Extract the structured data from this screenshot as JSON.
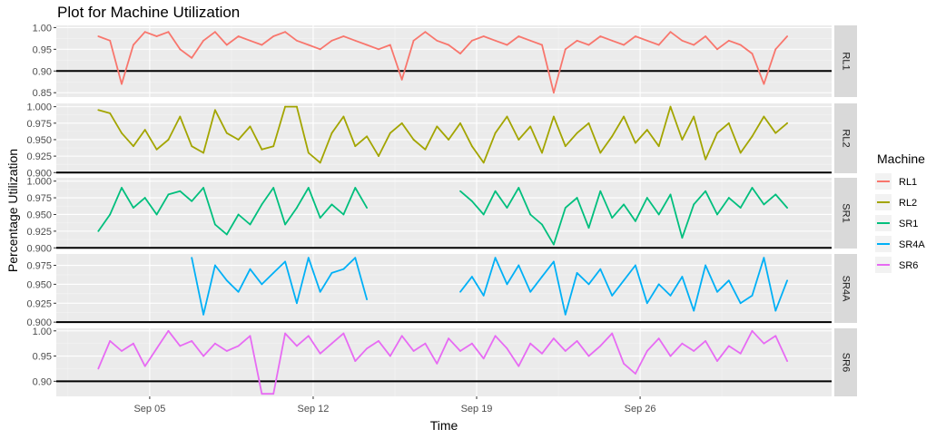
{
  "chart_data": {
    "type": "line",
    "title": "Plot for Machine Utilization",
    "xlabel": "Time",
    "ylabel": "Percentage Utilization",
    "legend": {
      "title": "Machine",
      "position": "right"
    },
    "facet_direction": "rows",
    "grid": true,
    "x_ticks": [
      "Sep 05",
      "Sep 12",
      "Sep 19",
      "Sep 26"
    ],
    "x_tick_days": [
      5,
      12,
      19,
      26
    ],
    "xlim_days": [
      1.0,
      34.2
    ],
    "threshold": {
      "y": 0.9,
      "color": "#000000"
    },
    "panels": [
      {
        "name": "RL1",
        "color": "#F8766D",
        "ylim": [
          0.84,
          1.005
        ],
        "yticks": [
          0.85,
          0.9,
          0.95,
          1.0
        ],
        "ytick_labels": [
          "0.85",
          "0.90",
          "0.95",
          "1.00"
        ],
        "x": [
          2.8,
          3.3,
          3.8,
          4.3,
          4.8,
          5.3,
          5.8,
          6.3,
          6.8,
          7.3,
          7.8,
          8.3,
          8.8,
          9.3,
          9.8,
          10.3,
          10.8,
          11.3,
          11.8,
          12.3,
          12.8,
          13.3,
          13.8,
          14.3,
          14.8,
          15.3,
          15.8,
          16.3,
          16.8,
          17.3,
          17.8,
          18.3,
          18.8,
          19.3,
          19.8,
          20.3,
          20.8,
          21.3,
          21.8,
          22.3,
          22.8,
          23.3,
          23.8,
          24.3,
          24.8,
          25.3,
          25.8,
          26.3,
          26.8,
          27.3,
          27.8,
          28.3,
          28.8,
          29.3,
          29.8,
          30.3,
          30.8,
          31.3,
          31.8,
          32.3
        ],
        "values": [
          0.98,
          0.97,
          0.87,
          0.96,
          0.99,
          0.98,
          0.99,
          0.95,
          0.93,
          0.97,
          0.99,
          0.96,
          0.98,
          0.97,
          0.96,
          0.98,
          0.99,
          0.97,
          0.96,
          0.95,
          0.97,
          0.98,
          0.97,
          0.96,
          0.95,
          0.96,
          0.88,
          0.97,
          0.99,
          0.97,
          0.96,
          0.94,
          0.97,
          0.98,
          0.97,
          0.96,
          0.98,
          0.97,
          0.96,
          0.85,
          0.95,
          0.97,
          0.96,
          0.98,
          0.97,
          0.96,
          0.98,
          0.97,
          0.96,
          0.99,
          0.97,
          0.96,
          0.98,
          0.95,
          0.97,
          0.96,
          0.94,
          0.87,
          0.95,
          0.98
        ]
      },
      {
        "name": "RL2",
        "color": "#A3A500",
        "ylim": [
          0.899,
          1.005
        ],
        "yticks": [
          0.9,
          0.925,
          0.95,
          0.975,
          1.0
        ],
        "ytick_labels": [
          "0.900",
          "0.925",
          "0.950",
          "0.975",
          "1.000"
        ],
        "x": [
          2.8,
          3.3,
          3.8,
          4.3,
          4.8,
          5.3,
          5.8,
          6.3,
          6.8,
          7.3,
          7.8,
          8.3,
          8.8,
          9.3,
          9.8,
          10.3,
          10.8,
          11.3,
          11.8,
          12.3,
          12.8,
          13.3,
          13.8,
          14.3,
          14.8,
          15.3,
          15.8,
          16.3,
          16.8,
          17.3,
          17.8,
          18.3,
          18.8,
          19.3,
          19.8,
          20.3,
          20.8,
          21.3,
          21.8,
          22.3,
          22.8,
          23.3,
          23.8,
          24.3,
          24.8,
          25.3,
          25.8,
          26.3,
          26.8,
          27.3,
          27.8,
          28.3,
          28.8,
          29.3,
          29.8,
          30.3,
          30.8,
          31.3,
          31.8,
          32.3
        ],
        "values": [
          0.995,
          0.99,
          0.96,
          0.94,
          0.965,
          0.935,
          0.95,
          0.985,
          0.94,
          0.93,
          0.995,
          0.96,
          0.95,
          0.97,
          0.935,
          0.94,
          1.0,
          1.0,
          0.93,
          0.915,
          0.96,
          0.985,
          0.94,
          0.955,
          0.925,
          0.96,
          0.975,
          0.95,
          0.935,
          0.97,
          0.95,
          0.975,
          0.94,
          0.915,
          0.96,
          0.985,
          0.95,
          0.97,
          0.93,
          0.985,
          0.94,
          0.96,
          0.975,
          0.93,
          0.955,
          0.985,
          0.945,
          0.965,
          0.94,
          1.0,
          0.95,
          0.985,
          0.92,
          0.96,
          0.975,
          0.93,
          0.955,
          0.985,
          0.96,
          0.975
        ]
      },
      {
        "name": "SR1",
        "color": "#00BF7D",
        "ylim": [
          0.899,
          1.005
        ],
        "yticks": [
          0.9,
          0.925,
          0.95,
          0.975,
          1.0
        ],
        "ytick_labels": [
          "0.900",
          "0.925",
          "0.950",
          "0.975",
          "1.000"
        ],
        "x": [
          2.8,
          3.3,
          3.8,
          4.3,
          4.8,
          5.3,
          5.8,
          6.3,
          6.8,
          7.3,
          7.8,
          8.3,
          8.8,
          9.3,
          9.8,
          10.3,
          10.8,
          11.3,
          11.8,
          12.3,
          12.8,
          13.3,
          13.8,
          14.3,
          14.8,
          15.3,
          15.8,
          16.3,
          16.8,
          17.3,
          17.8,
          18.3,
          18.8,
          19.3,
          19.8,
          20.3,
          20.8,
          21.3,
          21.8,
          22.3,
          22.8,
          23.3,
          23.8,
          24.3,
          24.8,
          25.3,
          25.8,
          26.3,
          26.8,
          27.3,
          27.8,
          28.3,
          28.8,
          29.3,
          29.8,
          30.3,
          30.8,
          31.3,
          31.8,
          32.3
        ],
        "values": [
          0.925,
          0.95,
          0.99,
          0.96,
          0.975,
          0.95,
          0.98,
          0.985,
          0.97,
          0.99,
          0.935,
          0.92,
          0.95,
          0.935,
          0.965,
          0.99,
          0.935,
          0.96,
          0.99,
          0.945,
          0.965,
          0.95,
          0.99,
          0.96,
          null,
          null,
          null,
          null,
          null,
          null,
          null,
          0.985,
          0.97,
          0.95,
          0.985,
          0.96,
          0.99,
          0.95,
          0.935,
          0.905,
          0.96,
          0.975,
          0.93,
          0.985,
          0.945,
          0.965,
          0.94,
          0.975,
          0.95,
          0.98,
          0.915,
          0.965,
          0.985,
          0.95,
          0.975,
          0.96,
          0.99,
          0.965,
          0.98,
          0.96
        ]
      },
      {
        "name": "SR4A",
        "color": "#00B0F6",
        "ylim": [
          0.899,
          0.99
        ],
        "yticks": [
          0.9,
          0.925,
          0.95,
          0.975
        ],
        "ytick_labels": [
          "0.900",
          "0.925",
          "0.950",
          "0.975"
        ],
        "x": [
          2.8,
          3.3,
          3.8,
          4.3,
          4.8,
          5.3,
          5.8,
          6.3,
          6.8,
          7.3,
          7.8,
          8.3,
          8.8,
          9.3,
          9.8,
          10.3,
          10.8,
          11.3,
          11.8,
          12.3,
          12.8,
          13.3,
          13.8,
          14.3,
          14.8,
          15.3,
          15.8,
          16.3,
          16.8,
          17.3,
          17.8,
          18.3,
          18.8,
          19.3,
          19.8,
          20.3,
          20.8,
          21.3,
          21.8,
          22.3,
          22.8,
          23.3,
          23.8,
          24.3,
          24.8,
          25.3,
          25.8,
          26.3,
          26.8,
          27.3,
          27.8,
          28.3,
          28.8,
          29.3,
          29.8,
          30.3,
          30.8,
          31.3,
          31.8,
          32.3
        ],
        "values": [
          null,
          null,
          null,
          null,
          null,
          null,
          null,
          null,
          0.985,
          0.91,
          0.975,
          0.955,
          0.94,
          0.97,
          0.95,
          0.965,
          0.98,
          0.925,
          0.985,
          0.94,
          0.965,
          0.97,
          0.985,
          0.93,
          null,
          null,
          null,
          null,
          null,
          null,
          null,
          0.94,
          0.96,
          0.935,
          0.985,
          0.95,
          0.975,
          0.94,
          0.96,
          0.98,
          0.91,
          0.965,
          0.95,
          0.97,
          0.935,
          0.955,
          0.975,
          0.925,
          0.95,
          0.935,
          0.96,
          0.915,
          0.975,
          0.94,
          0.955,
          0.925,
          0.935,
          0.985,
          0.915,
          0.955
        ]
      },
      {
        "name": "SR6",
        "color": "#E76BF3",
        "ylim": [
          0.87,
          1.005
        ],
        "yticks": [
          0.9,
          0.95,
          1.0
        ],
        "ytick_labels": [
          "0.90",
          "0.95",
          "1.00"
        ],
        "x": [
          2.8,
          3.3,
          3.8,
          4.3,
          4.8,
          5.3,
          5.8,
          6.3,
          6.8,
          7.3,
          7.8,
          8.3,
          8.8,
          9.3,
          9.8,
          10.3,
          10.8,
          11.3,
          11.8,
          12.3,
          12.8,
          13.3,
          13.8,
          14.3,
          14.8,
          15.3,
          15.8,
          16.3,
          16.8,
          17.3,
          17.8,
          18.3,
          18.8,
          19.3,
          19.8,
          20.3,
          20.8,
          21.3,
          21.8,
          22.3,
          22.8,
          23.3,
          23.8,
          24.3,
          24.8,
          25.3,
          25.8,
          26.3,
          26.8,
          27.3,
          27.8,
          28.3,
          28.8,
          29.3,
          29.8,
          30.3,
          30.8,
          31.3,
          31.8,
          32.3
        ],
        "values": [
          0.925,
          0.98,
          0.96,
          0.975,
          0.93,
          0.965,
          1.0,
          0.97,
          0.98,
          0.95,
          0.975,
          0.96,
          0.97,
          0.99,
          0.875,
          0.875,
          0.995,
          0.97,
          0.99,
          0.955,
          0.975,
          0.995,
          0.94,
          0.965,
          0.98,
          0.95,
          0.99,
          0.96,
          0.975,
          0.935,
          0.985,
          0.96,
          0.975,
          0.945,
          0.99,
          0.965,
          0.93,
          0.975,
          0.955,
          0.985,
          0.96,
          0.98,
          0.95,
          0.97,
          0.995,
          0.935,
          0.915,
          0.96,
          0.985,
          0.95,
          0.975,
          0.96,
          0.98,
          0.94,
          0.97,
          0.955,
          1.0,
          0.975,
          0.99,
          0.94
        ]
      }
    ]
  }
}
